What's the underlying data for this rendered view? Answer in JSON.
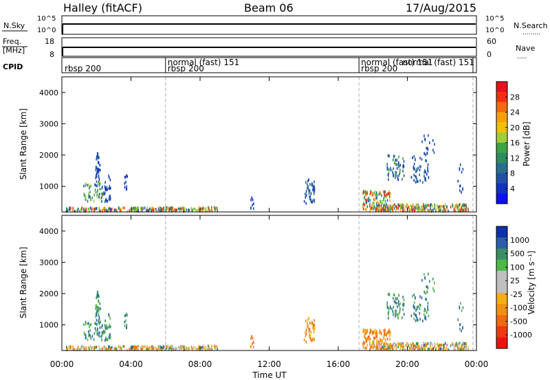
{
  "header": {
    "station": "Halley (fitACF)",
    "beam": "Beam 06",
    "date": "17/Aug/2015"
  },
  "noise_panel": {
    "left_label": "N.Sky",
    "right_label": "N.Search",
    "left_ticks": [
      "10^5",
      "10^0"
    ],
    "right_ticks": [
      "10^5",
      "10^0"
    ]
  },
  "freq_panel": {
    "left_label_line1": "Freq.",
    "left_label_line2": "[MHz]",
    "right_label": "Nave",
    "left_ticks": [
      "18",
      "8"
    ],
    "right_ticks": [
      "60",
      "0"
    ]
  },
  "cpid_panel": {
    "label": "CPID",
    "segments": [
      {
        "start_h": 0.0,
        "text": "rbsp 200",
        "row": 2
      },
      {
        "start_h": 6.0,
        "text": "normal (fast) 151",
        "row": 1
      },
      {
        "start_h": 6.0,
        "text": "rbsp 200",
        "row": 2
      },
      {
        "start_h": 17.2,
        "text": "normal (fast) 151",
        "row": 1
      },
      {
        "start_h": 17.2,
        "text": "rbsp 200",
        "row": 2
      },
      {
        "start_h": 19.6,
        "text": "normal (fast) 151",
        "row": 1
      }
    ],
    "boundaries_h": [
      6.0,
      17.2,
      23.8
    ]
  },
  "x_axis": {
    "label": "Time UT",
    "ticks": [
      "00:00",
      "04:00",
      "08:00",
      "12:00",
      "16:00",
      "20:00",
      "00:00"
    ],
    "tick_hours": [
      0,
      4,
      8,
      12,
      16,
      20,
      24
    ]
  },
  "power_panel": {
    "ylabel": "Slant Range [km]",
    "cb_label": "Power [dB]",
    "cb_ticks": [
      "28",
      "24",
      "20",
      "16",
      "12",
      "8",
      "4"
    ],
    "cb_colors": [
      "#e8101a",
      "#f03010",
      "#f36a0e",
      "#f5a010",
      "#f0c10a",
      "#a2cd3a",
      "#3fa248",
      "#2f8a60",
      "#2a6e8c",
      "#2050a8",
      "#1432c0",
      "#1010ee"
    ]
  },
  "velocity_panel": {
    "ylabel": "Slant Range [km]",
    "cb_label": "Velocity [m s⁻¹]",
    "cb_ticks": [
      "1000",
      "500",
      "100",
      "25",
      "-25",
      "-100",
      "-500",
      "-1000"
    ],
    "cb_colors": [
      "#1030a8",
      "#2a5ea8",
      "#3a8f62",
      "#4fb84a",
      "#bfbfbf",
      "#bfbfbf",
      "#f2ae12",
      "#f29010",
      "#f06a10",
      "#ee3a14",
      "#e81414"
    ]
  },
  "y_ticks": [
    "1000",
    "2000",
    "3000",
    "4000"
  ],
  "chart_data": {
    "type": "heatmap",
    "x_range_hours": [
      0,
      24
    ],
    "y_range_km": [
      180,
      4500
    ],
    "panels": [
      "Power [dB]",
      "Velocity [m s⁻¹]"
    ],
    "echo_regions": [
      {
        "t_start": 0.3,
        "t_end": 2.8,
        "r_min": 180,
        "r_max": 2100,
        "power_db": "4-28",
        "velocity": "-100 to 500"
      },
      {
        "t_start": 3.5,
        "t_end": 6.3,
        "r_min": 180,
        "r_max": 1400,
        "power_db": "4-28",
        "velocity": "-25 to 100"
      },
      {
        "t_start": 6.0,
        "t_end": 9.0,
        "r_min": 180,
        "r_max": 350,
        "power_db": "8-28",
        "velocity": "-25 to 100"
      },
      {
        "t_start": 10.8,
        "t_end": 11.2,
        "r_min": 200,
        "r_max": 700,
        "power_db": "4-12",
        "velocity": "-100"
      },
      {
        "t_start": 14.0,
        "t_end": 14.6,
        "r_min": 350,
        "r_max": 1300,
        "power_db": "4-12",
        "velocity": "-100 to -500"
      },
      {
        "t_start": 17.4,
        "t_end": 19.0,
        "r_min": 180,
        "r_max": 900,
        "power_db": "8-28",
        "velocity": "-100 to -500"
      },
      {
        "t_start": 18.7,
        "t_end": 21.5,
        "r_min": 900,
        "r_max": 2600,
        "power_db": "4-20",
        "velocity": "25 to 500"
      },
      {
        "t_start": 18.0,
        "t_end": 23.5,
        "r_min": 180,
        "r_max": 400,
        "power_db": "8-24",
        "velocity": "-100 to 100"
      }
    ]
  }
}
